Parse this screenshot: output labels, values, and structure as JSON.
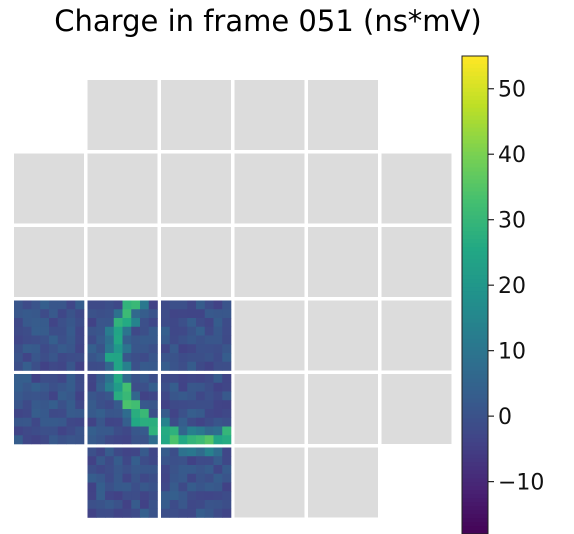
{
  "chart_data": {
    "type": "heatmap",
    "title": "Charge in frame 051 (ns*mV)",
    "colormap": "viridis",
    "value_range": [
      -18,
      55
    ],
    "colorbar": {
      "ticks": [
        -10,
        0,
        10,
        20,
        30,
        40,
        50
      ],
      "tick_labels": [
        "−10",
        "0",
        "10",
        "20",
        "30",
        "40",
        "50"
      ]
    },
    "module_grid": {
      "rows": 6,
      "cols": 6,
      "present": [
        [
          false,
          true,
          true,
          true,
          true,
          false
        ],
        [
          true,
          true,
          true,
          true,
          true,
          true
        ],
        [
          true,
          true,
          true,
          true,
          true,
          true
        ],
        [
          true,
          true,
          true,
          true,
          true,
          true
        ],
        [
          true,
          true,
          true,
          true,
          true,
          true
        ],
        [
          false,
          true,
          true,
          true,
          true,
          false
        ]
      ],
      "active": [
        [
          false,
          false,
          false,
          false,
          false,
          false
        ],
        [
          false,
          false,
          false,
          false,
          false,
          false
        ],
        [
          false,
          false,
          false,
          false,
          false,
          false
        ],
        [
          true,
          true,
          true,
          false,
          false,
          false
        ],
        [
          true,
          true,
          true,
          false,
          false,
          false
        ],
        [
          false,
          true,
          true,
          false,
          false,
          false
        ]
      ],
      "inactive_color": "#dcdcdc",
      "pixels_per_module": 8
    },
    "ring": {
      "center_module": [
        2.05,
        4.3
      ],
      "radius_modules": 1.15,
      "peak_charge": 55,
      "background_charge": 0
    }
  }
}
